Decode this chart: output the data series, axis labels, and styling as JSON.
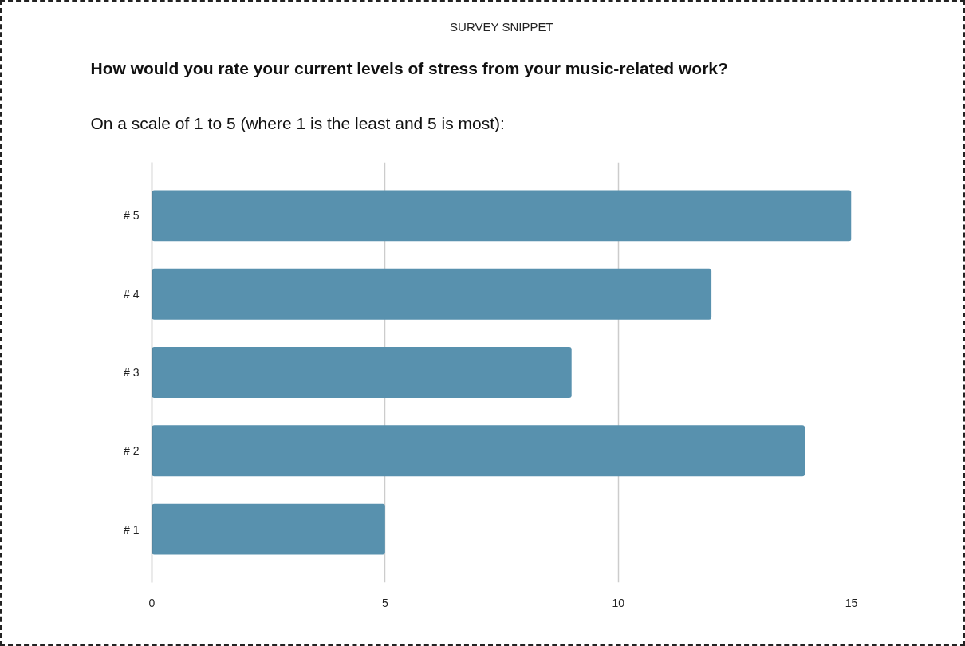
{
  "chart_data": {
    "type": "bar",
    "orientation": "horizontal",
    "title": "How would you rate your current levels of stress from your music-related work?",
    "subtitle": "On a scale of 1 to 5 (where 1 is the least and 5 is most):",
    "annotations": [
      "SURVEY SNIPPET"
    ],
    "categories": [
      "# 5",
      "# 4",
      "# 3",
      "# 2",
      "# 1"
    ],
    "values": [
      15,
      12,
      9,
      14,
      5
    ],
    "color": "#5891ae",
    "xlim": [
      0,
      15
    ],
    "xticks": [
      0,
      5,
      10,
      15
    ],
    "grid": "x"
  }
}
